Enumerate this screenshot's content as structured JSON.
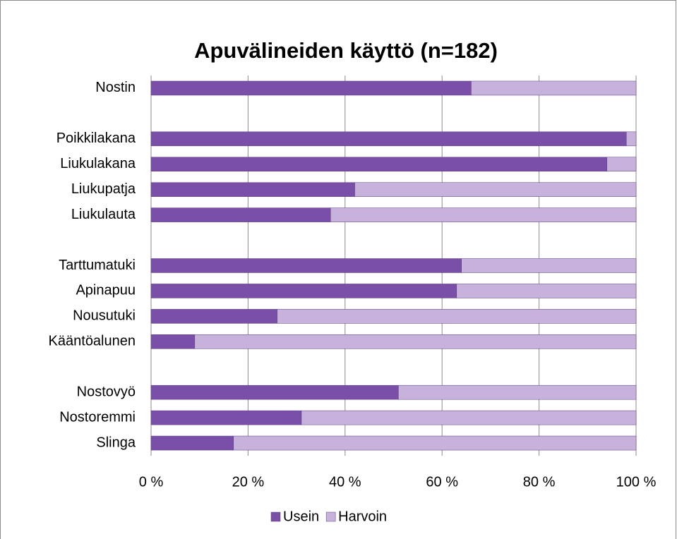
{
  "chart_data": {
    "type": "stacked_barh",
    "title": "Apuvälineiden käyttö (n=182)",
    "categories": [
      "Nostin",
      null,
      "Poikkilakana",
      "Liukulakana",
      "Liukupatja",
      "Liukulauta",
      null,
      "Tarttumatuki",
      "Apinapuu",
      "Nousutuki",
      "Kääntöalunen",
      null,
      "Nostovyö",
      "Nostoremmi",
      "Slinga"
    ],
    "series": [
      {
        "name": "Usein",
        "color": "#7a4fa8",
        "values": [
          66,
          null,
          98,
          94,
          42,
          37,
          null,
          64,
          63,
          26,
          9,
          null,
          51,
          31,
          17
        ]
      },
      {
        "name": "Harvoin",
        "color": "#c7b2dc",
        "values": [
          34,
          null,
          2,
          6,
          58,
          63,
          null,
          36,
          37,
          74,
          91,
          null,
          49,
          69,
          83
        ]
      }
    ],
    "xlim": [
      0,
      100
    ],
    "xticks": [
      {
        "value": 0,
        "label": "0 %"
      },
      {
        "value": 20,
        "label": "20 %"
      },
      {
        "value": 40,
        "label": "40 %"
      },
      {
        "value": 60,
        "label": "60 %"
      },
      {
        "value": 80,
        "label": "80 %"
      },
      {
        "value": 100,
        "label": "100 %"
      }
    ],
    "grid": true,
    "legend": "bottom"
  }
}
